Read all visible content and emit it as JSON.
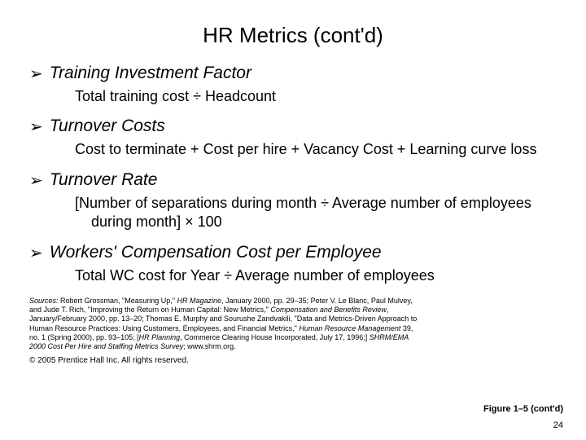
{
  "title": "HR Metrics (cont'd)",
  "metrics": [
    {
      "name": "Training Investment Factor",
      "formula": "Total training cost ÷ Headcount"
    },
    {
      "name": "Turnover Costs",
      "formula": "Cost to terminate + Cost per hire + Vacancy Cost + Learning curve loss"
    },
    {
      "name": "Turnover Rate",
      "formula": "[Number of separations during month ÷ Average number of employees during month] × 100"
    },
    {
      "name": "Workers' Compensation Cost per Employee",
      "formula": "Total WC cost for Year ÷ Average number of employees"
    }
  ],
  "sources_html": "<span class=\"em\">Sources:</span> Robert Grossman, \"Measuring Up,\" <span class=\"em\">HR Magazine</span>, January 2000, pp. 29–35; Peter V. Le Blanc, Paul Mulvey, and Jude T. Rich, \"Improving the Return on Human Capital: New Metrics,\" <span class=\"em\">Compensation and Benefits Review</span>, January/February 2000, pp. 13–20; Thomas E. Murphy and Sourushe Zandvakili, \"Data and Metrics-Driven Approach to Human Resource Practices: Using Customers, Employees, and Financial Metrics,\" <span class=\"em\">Human Resource Management</span> 39, no. 1 (Spring 2000), pp. 93–105; [<span class=\"em\">HR Planning</span>, Commerce Clearing House Incorporated, July 17, 1996;] <span class=\"em\">SHRM/EMA 2000 Cost Per Hire and Staffing Metrics Survey</span>; www.shrm.org.",
  "copyright": "© 2005 Prentice Hall Inc. All rights reserved.",
  "figure_label": "Figure 1–5 (cont'd)",
  "page_number": "24",
  "bullet_glyph": "➢",
  "colors": {
    "background": "#ffffff",
    "text": "#000000"
  }
}
